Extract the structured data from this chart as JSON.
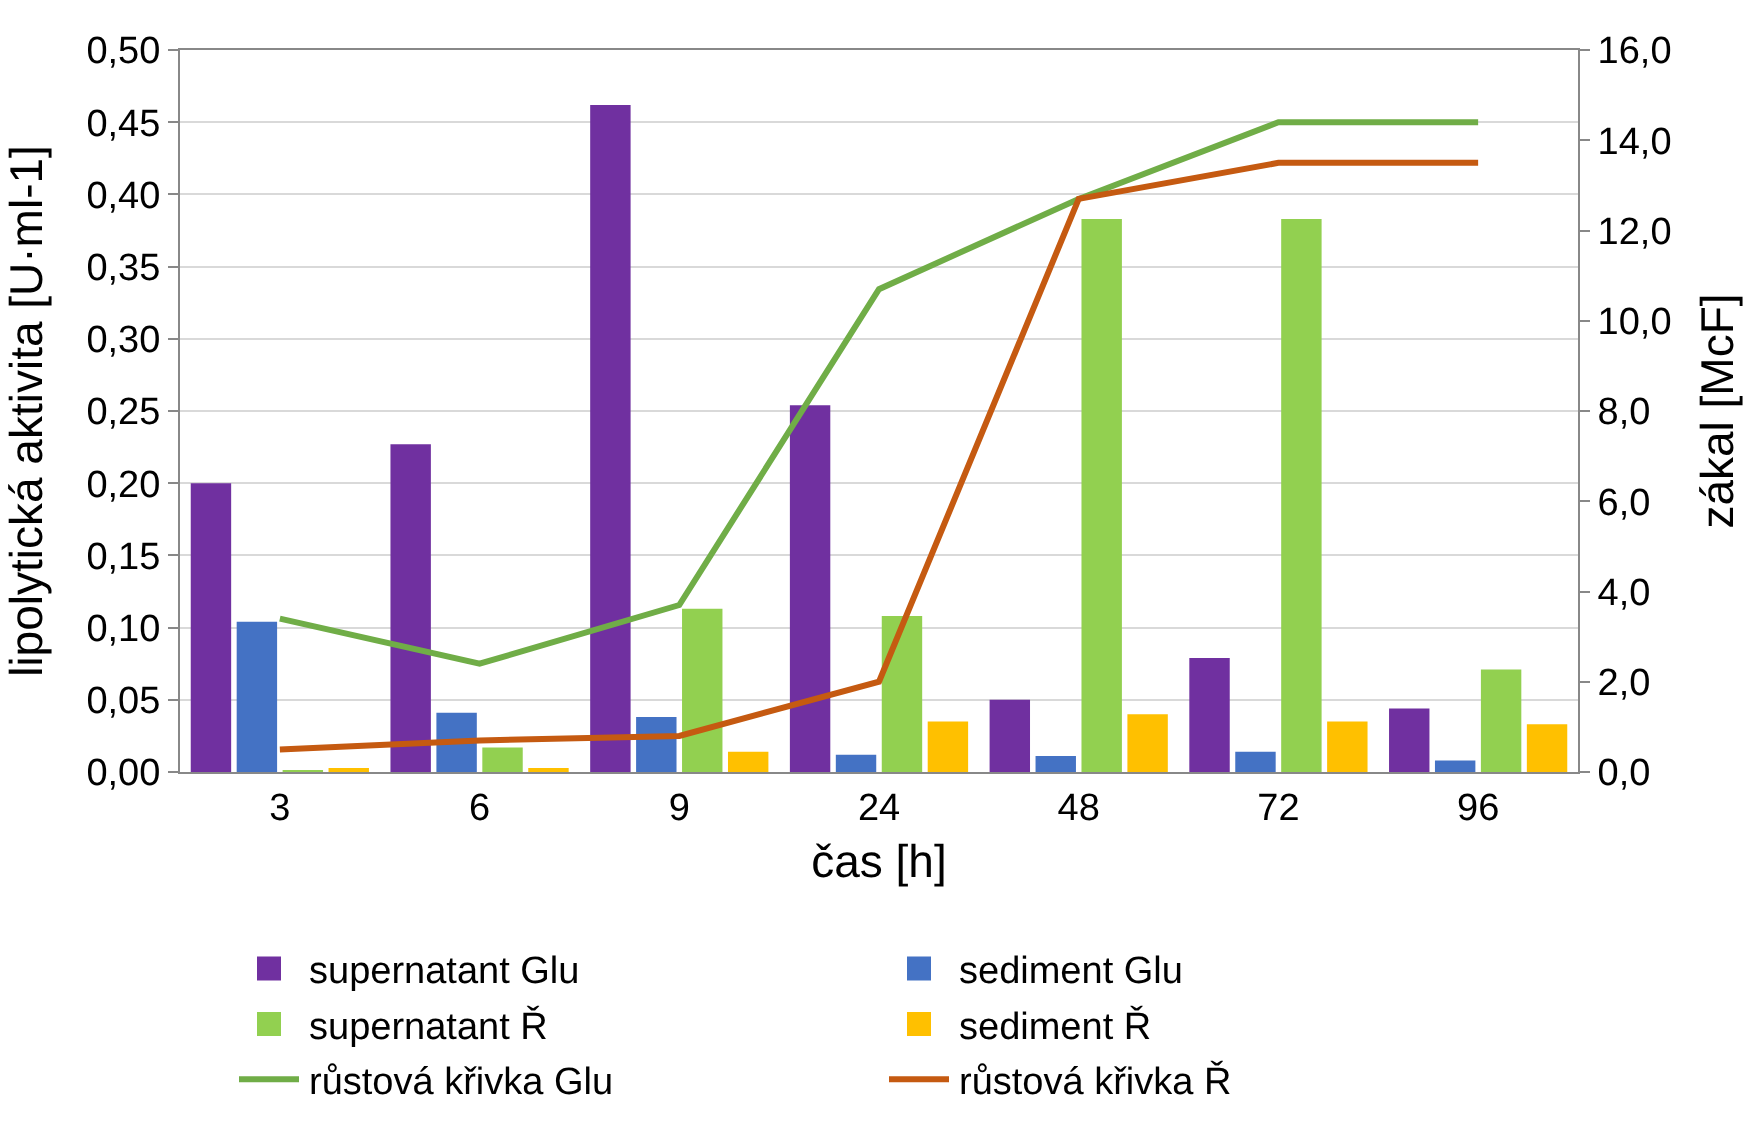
{
  "chart_data": {
    "type": "bar",
    "xlabel": "čas [h]",
    "ylabel": "lipolytická aktivita [U·ml-1]",
    "y2label": "zákal [McF]",
    "categories": [
      "3",
      "6",
      "9",
      "24",
      "48",
      "72",
      "96"
    ],
    "series": [
      {
        "name": "supernatant Glu",
        "color": "#7030a0",
        "values": [
          0.2,
          0.227,
          0.462,
          0.254,
          0.05,
          0.079,
          0.044
        ]
      },
      {
        "name": "sediment Glu",
        "color": "#4472c4",
        "values": [
          0.104,
          0.041,
          0.038,
          0.012,
          0.011,
          0.014,
          0.008
        ]
      },
      {
        "name": "supernatant Ř",
        "color": "#92d050",
        "values": [
          0.001,
          0.017,
          0.113,
          0.108,
          0.383,
          0.383,
          0.071
        ]
      },
      {
        "name": "sediment Ř",
        "color": "#ffc000",
        "values": [
          0.002,
          0.002,
          0.014,
          0.035,
          0.04,
          0.035,
          0.033
        ]
      },
      {
        "name": "růstová křivka Glu",
        "type": "line",
        "axis": "y2",
        "color": "#70ad47",
        "values": [
          3.4,
          2.4,
          3.7,
          10.7,
          12.7,
          14.4,
          14.4
        ]
      },
      {
        "name": "růstová křivka Ř",
        "type": "line",
        "axis": "y2",
        "color": "#c55a11",
        "values": [
          0.5,
          0.7,
          0.8,
          2.0,
          12.7,
          13.5,
          13.5
        ]
      }
    ],
    "ylim": [
      0,
      0.5
    ],
    "yticks": [
      {
        "value": 0,
        "label": "0,00"
      },
      {
        "value": 0.05,
        "label": "0,05"
      },
      {
        "value": 0.1,
        "label": "0,10"
      },
      {
        "value": 0.15,
        "label": "0,15"
      },
      {
        "value": 0.2,
        "label": "0,20"
      },
      {
        "value": 0.25,
        "label": "0,25"
      },
      {
        "value": 0.3,
        "label": "0,30"
      },
      {
        "value": 0.35,
        "label": "0,35"
      },
      {
        "value": 0.4,
        "label": "0,40"
      },
      {
        "value": 0.45,
        "label": "0,45"
      },
      {
        "value": 0.5,
        "label": "0,50"
      }
    ],
    "y2lim": [
      0,
      16
    ],
    "y2ticks": [
      {
        "value": 0,
        "label": "0,0"
      },
      {
        "value": 2,
        "label": "2,0"
      },
      {
        "value": 4,
        "label": "4,0"
      },
      {
        "value": 6,
        "label": "6,0"
      },
      {
        "value": 8,
        "label": "8,0"
      },
      {
        "value": 10,
        "label": "10,0"
      },
      {
        "value": 12,
        "label": "12,0"
      },
      {
        "value": 14,
        "label": "14,0"
      },
      {
        "value": 16,
        "label": "16,0"
      }
    ],
    "grid": "y",
    "legend": "bottom",
    "marker": "none",
    "line_style": "solid"
  }
}
